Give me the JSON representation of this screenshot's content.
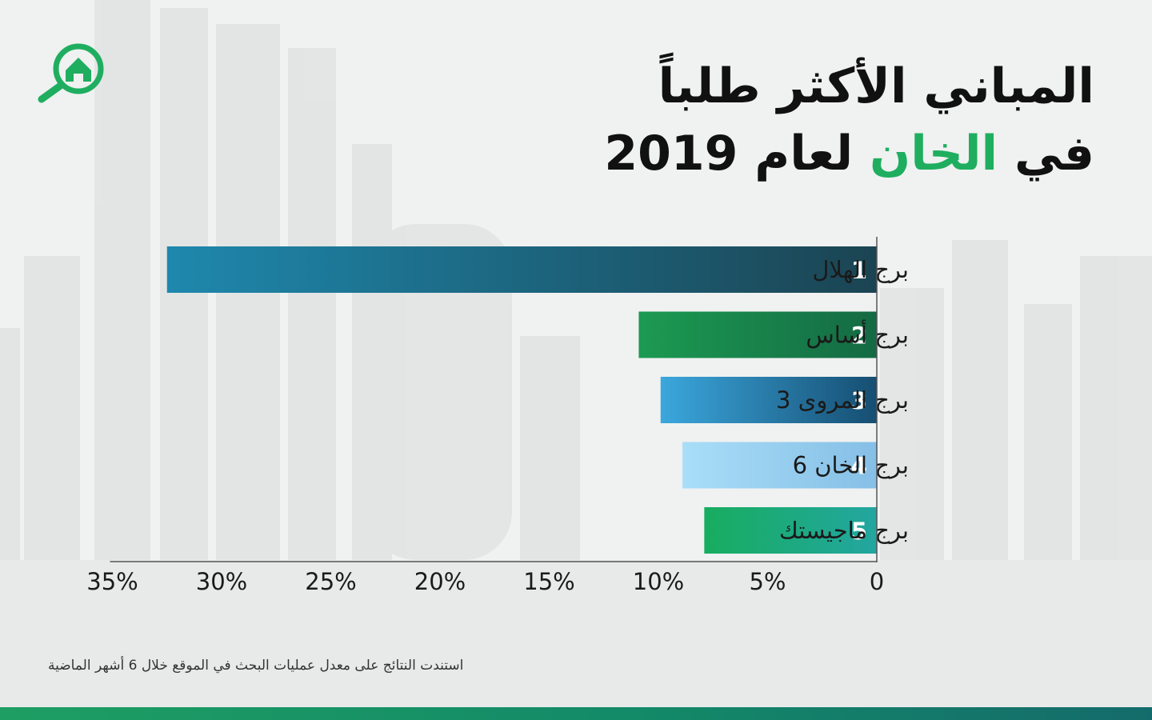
{
  "title": {
    "line1": "المباني الأكثر طلباً",
    "line2_pre": "في",
    "line2_accent": "الخان",
    "line2_post": "لعام 2019"
  },
  "logo_icon": "house-search-icon",
  "colors": {
    "accent": "#1fae5f",
    "bar_gradients": [
      [
        "#1e88ad",
        "#1b4452"
      ],
      [
        "#1c9a52",
        "#146a43"
      ],
      [
        "#3ba7dd",
        "#164e72"
      ],
      [
        "#a9def8",
        "#86bfe6"
      ],
      [
        "#17ad5f",
        "#23a6a0"
      ]
    ]
  },
  "footnote": "استندت النتائج على معدل عمليات البحث في الموقع خلال 6 أشهر الماضية",
  "chart_data": {
    "type": "bar",
    "orientation": "horizontal",
    "categories": [
      "برج الهلال",
      "برج أساس",
      "برج المروى 3",
      "برج الخان 6",
      "برج ماجيستك"
    ],
    "ranks": [
      "1",
      "2",
      "3",
      "4",
      "5"
    ],
    "values": [
      32.5,
      10.9,
      9.9,
      8.9,
      7.9
    ],
    "xlim": [
      0,
      35
    ],
    "x_direction": "right-to-left",
    "ticks": [
      0,
      5,
      10,
      15,
      20,
      25,
      30,
      35
    ],
    "tick_labels": [
      "0",
      "5%",
      "10%",
      "15%",
      "20%",
      "25%",
      "30%",
      "35%"
    ],
    "grid": false,
    "legend": "none"
  }
}
